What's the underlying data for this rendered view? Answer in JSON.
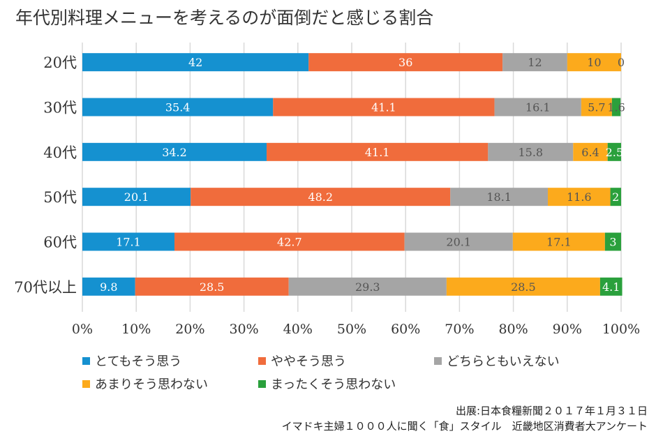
{
  "chart_data": {
    "type": "bar",
    "orientation": "horizontal",
    "stacked": "percent",
    "title": "年代別料理メニューを考えるのが面倒だと感じる割合",
    "categories": [
      "20代",
      "30代",
      "40代",
      "50代",
      "60代",
      "70代以上"
    ],
    "series": [
      {
        "name": "とてもそう思う",
        "color": "#1591d0",
        "values": [
          42,
          35.4,
          34.2,
          20.1,
          17.1,
          9.8
        ]
      },
      {
        "name": "ややそう思う",
        "color": "#f06c3c",
        "values": [
          36,
          41.1,
          41.1,
          48.2,
          42.7,
          28.5
        ]
      },
      {
        "name": "どちらともいえない",
        "color": "#a5a5a5",
        "values": [
          12,
          16.1,
          15.8,
          18.1,
          20.1,
          29.3
        ]
      },
      {
        "name": "あまりそう思わない",
        "color": "#fcaa1c",
        "values": [
          10,
          5.7,
          6.4,
          11.6,
          17.1,
          28.5
        ]
      },
      {
        "name": "まったくそう思わない",
        "color": "#2aa03c",
        "values": [
          0,
          1.6,
          2.5,
          2,
          3,
          4.1
        ]
      }
    ],
    "xlim": [
      0,
      100
    ],
    "xticks": [
      "0%",
      "10%",
      "20%",
      "30%",
      "40%",
      "50%",
      "60%",
      "70%",
      "80%",
      "90%",
      "100%"
    ],
    "grid": "vertical",
    "legend": "bottom"
  },
  "source": {
    "line1": "出展:日本食糧新聞２０１７年１月３１日",
    "line2": "イマドキ主婦１０００人に聞く「食」スタイル　近畿地区消費者大アンケート"
  }
}
